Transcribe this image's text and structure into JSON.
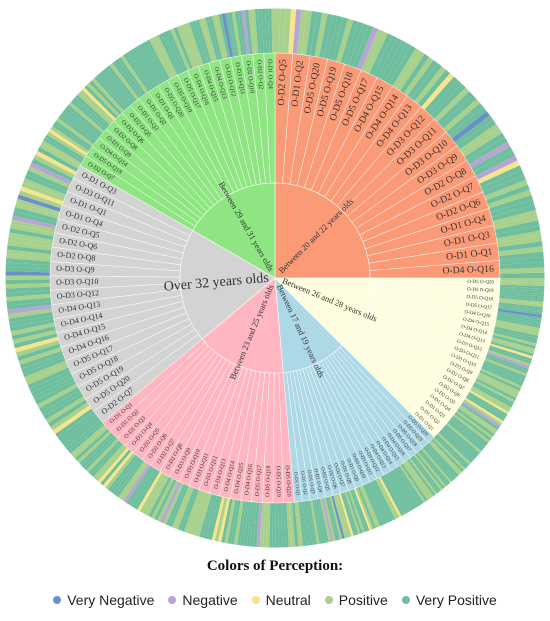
{
  "chart_data": {
    "type": "sunburst",
    "legend_title": "Colors of Perception:",
    "perception_colors": {
      "Very Negative": "#6a8fc9",
      "Negative": "#b9a4d6",
      "Neutral": "#f6e58d",
      "Positive": "#a9d18e",
      "Very Positive": "#6fbf9f"
    },
    "legend": [
      {
        "label": "Very Negative",
        "color": "#6a8fc9"
      },
      {
        "label": "Negative",
        "color": "#b9a4d6"
      },
      {
        "label": "Neutral",
        "color": "#f6e58d"
      },
      {
        "label": "Positive",
        "color": "#a9d18e"
      },
      {
        "label": "Very Positive",
        "color": "#6fbf9f"
      }
    ],
    "groups": [
      {
        "name": "Between 20 and 22 years olds",
        "color": "#fb9a76",
        "labels": [
          "O-D4 O-Q16",
          "O-D1 O-Q1",
          "O-D1 O-Q3",
          "O-D1 O-Q4",
          "O-D2 O-Q6",
          "O-D2 O-Q7",
          "O-D2 O-Q8",
          "O-D3 O-Q9",
          "O-D3 O-Q10",
          "O-D3 O-Q11",
          "O-D3 O-Q12",
          "O-D4 O-Q13",
          "O-D4 O-Q14",
          "O-D4 O-Q15",
          "O-D5 O-Q17",
          "O-D5 O-Q18",
          "O-D5 O-Q19",
          "O-D5 O-Q20",
          "O-D1 O-Q2",
          "O-D2 O-Q5"
        ]
      },
      {
        "name": "Between 29 and 31 years olds",
        "color": "#8ee581",
        "labels": [
          "O-D1 O-Q4",
          "O-D2 O-Q2",
          "O-D2 O-Q10",
          "O-D3 O-Q11",
          "O-D3 O-Q12",
          "O-D4 O-Q13",
          "O-D4 O-Q15",
          "O-D4 O-Q16",
          "O-D5 O-Q17",
          "O-D5 O-Q19",
          "O-D5 O-Q20",
          "O-D1 O-Q1",
          "O-D1 O-Q2",
          "O-D1 O-Q3",
          "O-D2 O-Q5",
          "O-D2 O-Q6",
          "O-D2 O-Q8",
          "O-D3 O-Q9",
          "O-D4 O-Q14",
          "O-D5 O-Q18",
          "O-D2 O-Q7"
        ]
      },
      {
        "name": "Over 32 years olds",
        "color": "#d3d3d3",
        "labels": [
          "O-D1 O-Q3",
          "O-D3 O-Q11",
          "O-D1 O-Q1",
          "O-D1 O-Q4",
          "O-D2 O-Q5",
          "O-D2 O-Q6",
          "O-D2 O-Q8",
          "O-D3 O-Q9",
          "O-D3 O-Q10",
          "O-D3 O-Q12",
          "O-D4 O-Q13",
          "O-D4 O-Q14",
          "O-D4 O-Q15",
          "O-D4 O-Q16",
          "O-D5 O-Q17",
          "O-D5 O-Q18",
          "O-D5 O-Q19",
          "O-D5 O-Q20",
          "O-D2 O-Q7"
        ]
      },
      {
        "name": "Between 23 and 25 years olds",
        "color": "#ffb6c1",
        "labels": [
          "O-D1 O-Q1",
          "O-D1 O-Q2",
          "O-D1 O-Q3",
          "O-D1 O-Q4",
          "O-D2 O-Q5",
          "O-D2 O-Q6",
          "O-D2 O-Q7",
          "O-D2 O-Q8",
          "O-D3 O-Q9",
          "O-D3 O-Q10",
          "O-D3 O-Q11",
          "O-D3 O-Q12",
          "O-D4 O-Q13",
          "O-D4 O-Q14",
          "O-D4 O-Q15",
          "O-D4 O-Q16",
          "O-D5 O-Q17",
          "O-D5 O-Q18",
          "O-D5 O-Q19",
          "O-D5 O-Q20"
        ]
      },
      {
        "name": "Between 17 and 19 years olds",
        "color": "#add8e6",
        "labels": [
          "O-D1 O-Q1",
          "O-D1 O-Q2",
          "O-D1 O-Q3",
          "O-D1 O-Q4",
          "O-D2 O-Q5",
          "O-D2 O-Q6",
          "O-D2 O-Q7",
          "O-D2 O-Q8",
          "O-D3 O-Q9",
          "O-D3 O-Q10",
          "O-D3 O-Q11",
          "O-D3 O-Q12",
          "O-D4 O-Q13",
          "O-D4 O-Q14",
          "O-D4 O-Q15",
          "O-D4 O-Q16",
          "O-D5 O-Q17",
          "O-D5 O-Q18",
          "O-D5 O-Q19",
          "O-D5 O-Q20"
        ]
      },
      {
        "name": "Between 26 and 28 years olds",
        "color": "#fffde0",
        "labels": [
          "O-D1 O-Q1",
          "O-D1 O-Q2",
          "O-D1 O-Q3",
          "O-D1 O-Q4",
          "O-D2 O-Q5",
          "O-D2 O-Q6",
          "O-D2 O-Q7",
          "O-D2 O-Q8",
          "O-D3 O-Q9",
          "O-D3 O-Q10",
          "O-D3 O-Q11",
          "O-D3 O-Q12",
          "O-D4 O-Q13",
          "O-D4 O-Q14",
          "O-D4 O-Q15",
          "O-D4 O-Q16",
          "O-D5 O-Q17",
          "O-D5 O-Q18",
          "O-D5 O-Q19",
          "O-D5 O-Q20"
        ]
      }
    ],
    "group_sizes": [
      90,
      60,
      70,
      55,
      40,
      45
    ]
  }
}
